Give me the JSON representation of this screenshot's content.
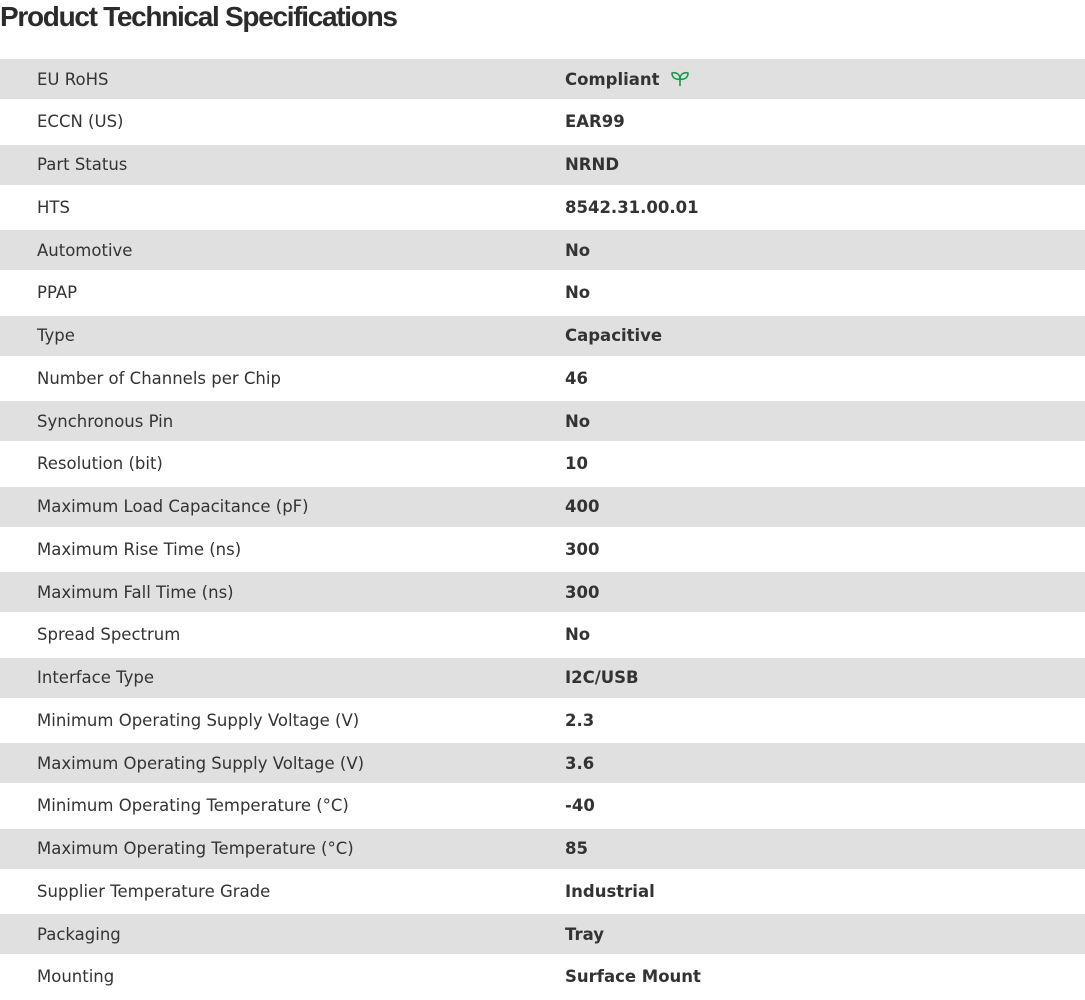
{
  "title": "Product Technical Specifications",
  "accent_color": "#1a9a4a",
  "rows": [
    {
      "label": "EU RoHS",
      "value": "Compliant",
      "icon": "leaf-icon"
    },
    {
      "label": "ECCN (US)",
      "value": "EAR99"
    },
    {
      "label": "Part Status",
      "value": "NRND"
    },
    {
      "label": "HTS",
      "value": "8542.31.00.01"
    },
    {
      "label": "Automotive",
      "value": "No"
    },
    {
      "label": "PPAP",
      "value": "No"
    },
    {
      "label": "Type",
      "value": "Capacitive"
    },
    {
      "label": "Number of Channels per Chip",
      "value": "46"
    },
    {
      "label": "Synchronous Pin",
      "value": "No"
    },
    {
      "label": "Resolution (bit)",
      "value": "10"
    },
    {
      "label": "Maximum Load Capacitance (pF)",
      "value": "400"
    },
    {
      "label": "Maximum Rise Time (ns)",
      "value": "300"
    },
    {
      "label": "Maximum Fall Time (ns)",
      "value": "300"
    },
    {
      "label": "Spread Spectrum",
      "value": "No"
    },
    {
      "label": "Interface Type",
      "value": "I2C/USB"
    },
    {
      "label": "Minimum Operating Supply Voltage (V)",
      "value": "2.3"
    },
    {
      "label": "Maximum Operating Supply Voltage (V)",
      "value": "3.6"
    },
    {
      "label": "Minimum Operating Temperature (°C)",
      "value": "-40"
    },
    {
      "label": "Maximum Operating Temperature (°C)",
      "value": "85"
    },
    {
      "label": "Supplier Temperature Grade",
      "value": "Industrial"
    },
    {
      "label": "Packaging",
      "value": "Tray"
    },
    {
      "label": "Mounting",
      "value": "Surface Mount"
    }
  ]
}
